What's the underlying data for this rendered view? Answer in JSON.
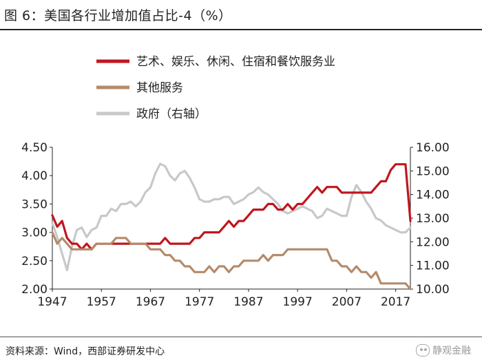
{
  "figure": {
    "title": "图 6：美国各行业增加值占比-4（%）",
    "source": "资料来源：Wind，西部证券研发中心",
    "watermark": "静观金融"
  },
  "chart_data": {
    "type": "line",
    "title": "图 6：美国各行业增加值占比-4（%）",
    "legend_position": "top-center",
    "grid": false,
    "x_axis": {
      "ticks": [
        1947,
        1957,
        1967,
        1977,
        1987,
        1997,
        2007,
        2017
      ],
      "range": [
        1947,
        2020
      ]
    },
    "y_left": {
      "range": [
        2.0,
        4.5
      ],
      "ticks": [
        "2.00",
        "2.50",
        "3.00",
        "3.50",
        "4.00",
        "4.50"
      ]
    },
    "y_right": {
      "range": [
        10.0,
        16.0
      ],
      "ticks": [
        "10.00",
        "11.00",
        "12.00",
        "13.00",
        "14.00",
        "15.00",
        "16.00"
      ]
    },
    "x": [
      1947,
      1948,
      1949,
      1950,
      1951,
      1952,
      1953,
      1954,
      1955,
      1956,
      1957,
      1958,
      1959,
      1960,
      1961,
      1962,
      1963,
      1964,
      1965,
      1966,
      1967,
      1968,
      1969,
      1970,
      1971,
      1972,
      1973,
      1974,
      1975,
      1976,
      1977,
      1978,
      1979,
      1980,
      1981,
      1982,
      1983,
      1984,
      1985,
      1986,
      1987,
      1988,
      1989,
      1990,
      1991,
      1992,
      1993,
      1994,
      1995,
      1996,
      1997,
      1998,
      1999,
      2000,
      2001,
      2002,
      2003,
      2004,
      2005,
      2006,
      2007,
      2008,
      2009,
      2010,
      2011,
      2012,
      2013,
      2014,
      2015,
      2016,
      2017,
      2018,
      2019,
      2020
    ],
    "series": [
      {
        "name": "艺术、娱乐、休闲、住宿和餐饮服务业",
        "axis": "left",
        "color": "#c0161e",
        "values": [
          3.3,
          3.1,
          3.2,
          2.9,
          2.8,
          2.8,
          2.7,
          2.8,
          2.7,
          2.8,
          2.8,
          2.8,
          2.8,
          2.8,
          2.8,
          2.8,
          2.8,
          2.8,
          2.8,
          2.8,
          2.8,
          2.8,
          2.8,
          2.9,
          2.8,
          2.8,
          2.8,
          2.8,
          2.8,
          2.9,
          2.9,
          3.0,
          3.0,
          3.0,
          3.0,
          3.1,
          3.2,
          3.1,
          3.2,
          3.2,
          3.3,
          3.4,
          3.4,
          3.4,
          3.5,
          3.5,
          3.4,
          3.4,
          3.5,
          3.4,
          3.5,
          3.5,
          3.6,
          3.7,
          3.8,
          3.7,
          3.8,
          3.8,
          3.8,
          3.7,
          3.7,
          3.7,
          3.7,
          3.7,
          3.7,
          3.7,
          3.8,
          3.9,
          3.9,
          4.1,
          4.2,
          4.2,
          4.2,
          3.2
        ]
      },
      {
        "name": "其他服务",
        "axis": "left",
        "color": "#b58a6a",
        "values": [
          3.0,
          2.8,
          2.9,
          2.8,
          2.7,
          2.7,
          2.7,
          2.7,
          2.7,
          2.8,
          2.8,
          2.8,
          2.8,
          2.9,
          2.9,
          2.9,
          2.8,
          2.8,
          2.8,
          2.8,
          2.7,
          2.7,
          2.7,
          2.6,
          2.6,
          2.5,
          2.5,
          2.4,
          2.4,
          2.3,
          2.3,
          2.3,
          2.4,
          2.3,
          2.4,
          2.4,
          2.3,
          2.4,
          2.4,
          2.5,
          2.5,
          2.5,
          2.5,
          2.6,
          2.5,
          2.6,
          2.6,
          2.6,
          2.7,
          2.7,
          2.7,
          2.7,
          2.7,
          2.7,
          2.7,
          2.7,
          2.7,
          2.5,
          2.5,
          2.4,
          2.4,
          2.3,
          2.4,
          2.3,
          2.3,
          2.2,
          2.3,
          2.1,
          2.1,
          2.1,
          2.1,
          2.1,
          2.1,
          2.0
        ]
      },
      {
        "name": "政府（右轴）",
        "axis": "right",
        "color": "#c8c8c8",
        "values": [
          12.8,
          12.2,
          11.5,
          10.8,
          11.8,
          12.5,
          12.6,
          12.2,
          12.5,
          12.6,
          13.1,
          13.1,
          13.4,
          13.3,
          13.6,
          13.6,
          13.7,
          13.5,
          13.7,
          14.1,
          14.3,
          14.9,
          15.3,
          15.2,
          14.8,
          14.6,
          14.9,
          15.0,
          14.7,
          14.3,
          13.8,
          13.7,
          13.7,
          13.8,
          13.8,
          13.9,
          13.9,
          13.6,
          13.7,
          13.8,
          14.0,
          14.1,
          14.3,
          14.1,
          14.0,
          13.8,
          13.6,
          13.3,
          13.2,
          13.3,
          13.4,
          13.5,
          13.4,
          13.3,
          13.0,
          13.1,
          13.4,
          13.3,
          13.2,
          13.1,
          13.1,
          13.9,
          14.4,
          14.1,
          13.7,
          13.4,
          13.0,
          12.9,
          12.7,
          12.6,
          12.5,
          12.4,
          12.4,
          12.6
        ]
      }
    ]
  }
}
